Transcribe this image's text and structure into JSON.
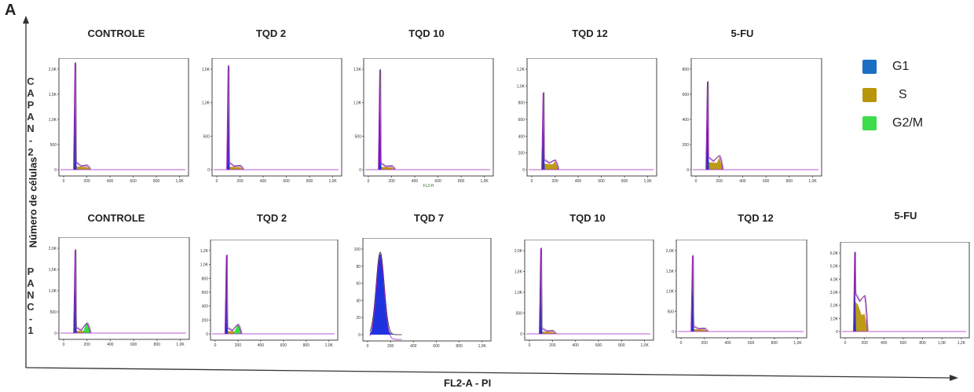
{
  "panel_letter": "A",
  "y_axis_label": "Número de células",
  "x_axis_label": "FL2-A - PI",
  "row_labels": [
    "CAPAN-2",
    "PANC-1"
  ],
  "legend": [
    {
      "label": "G1",
      "color": "#1a6fc4"
    },
    {
      "label": "S",
      "color": "#b8960b"
    },
    {
      "label": "G2/M",
      "color": "#3ddc4a"
    }
  ],
  "colors": {
    "histogram": "#a020c8",
    "g1_fill": "#1f32e0",
    "s_fill": "#b8960b",
    "g2m_fill": "#3ddc4a"
  },
  "chart_data": [
    {
      "type": "area",
      "row": "CAPAN-2",
      "title": "CONTROLE",
      "ymax": 2000,
      "yticks": [
        "0",
        "500",
        "1,0K",
        "1,5K",
        "2,0K"
      ],
      "xticks": [
        "0",
        "200",
        "400",
        "600",
        "800",
        "1,0K"
      ],
      "xlabel": "",
      "g1_peak": {
        "x": 100,
        "y": 2000
      },
      "s_level": 60,
      "g2m": {
        "x": 200,
        "y": 40
      },
      "g2m_visible": false
    },
    {
      "type": "area",
      "row": "CAPAN-2",
      "title": "TQD 2",
      "ymax": 1800,
      "yticks": [
        "0",
        "500",
        "1,0K",
        "1,5K"
      ],
      "xticks": [
        "0",
        "200",
        "400",
        "600",
        "800",
        "1,0K"
      ],
      "xlabel": "",
      "g1_peak": {
        "x": 100,
        "y": 1750
      },
      "s_level": 50,
      "g2m": {
        "x": 200,
        "y": 40
      },
      "g2m_visible": false
    },
    {
      "type": "area",
      "row": "CAPAN-2",
      "title": "TQD 10",
      "ymax": 1550,
      "yticks": [
        "0",
        "500",
        "1,0K",
        "1,5K"
      ],
      "xticks": [
        "0",
        "200",
        "400",
        "600",
        "800",
        "1,0K"
      ],
      "xlabel": "FL2-H",
      "g1_peak": {
        "x": 100,
        "y": 1450
      },
      "s_level": 40,
      "g2m": {
        "x": 200,
        "y": 40
      },
      "g2m_visible": false
    },
    {
      "type": "area",
      "row": "CAPAN-2",
      "title": "TQD 12",
      "ymax": 1250,
      "yticks": [
        "0",
        "200",
        "400",
        "600",
        "800",
        "1,0K",
        "1,2K"
      ],
      "xticks": [
        "0",
        "200",
        "400",
        "600",
        "800",
        "1,0K"
      ],
      "xlabel": "",
      "g1_peak": {
        "x": 100,
        "y": 900
      },
      "s_level": 70,
      "g2m": {
        "x": 200,
        "y": 110
      },
      "g2m_visible": false
    },
    {
      "type": "area",
      "row": "CAPAN-2",
      "title": "5-FU",
      "ymax": 850,
      "yticks": [
        "0",
        "200",
        "400",
        "600",
        "800"
      ],
      "xticks": [
        "0",
        "200",
        "400",
        "600",
        "800",
        "1,0K"
      ],
      "xlabel": "",
      "g1_peak": {
        "x": 100,
        "y": 700
      },
      "s_level": 60,
      "g2m": {
        "x": 200,
        "y": 110
      },
      "g2m_visible": false
    },
    {
      "type": "area",
      "row": "PANC-1",
      "title": "CONTROLE",
      "ymax": 2300,
      "yticks": [
        "0",
        "500",
        "1,0K",
        "1,5K",
        "2,0K"
      ],
      "xticks": [
        "0",
        "200",
        "400",
        "600",
        "800",
        "1,0K"
      ],
      "xlabel": "",
      "g1_peak": {
        "x": 100,
        "y": 2100
      },
      "s_level": 60,
      "g2m": {
        "x": 200,
        "y": 250
      },
      "g2m_visible": true
    },
    {
      "type": "area",
      "row": "PANC-1",
      "title": "TQD 2",
      "ymax": 1250,
      "yticks": [
        "0",
        "200",
        "400",
        "600",
        "800",
        "1,0K",
        "1,2K"
      ],
      "xticks": [
        "0",
        "200",
        "400",
        "600",
        "800",
        "1,0K"
      ],
      "xlabel": "",
      "g1_peak": {
        "x": 100,
        "y": 1100
      },
      "s_level": 40,
      "g2m": {
        "x": 200,
        "y": 130
      },
      "g2m_visible": true
    },
    {
      "type": "area",
      "row": "PANC-1",
      "title": "TQD 7",
      "ymax": 100,
      "yticks": [
        "0",
        "20",
        "40",
        "60",
        "80",
        "100"
      ],
      "xticks": [
        "0",
        "200",
        "400",
        "600",
        "800",
        "1,0K"
      ],
      "xlabel": "",
      "g1_peak": {
        "x": 100,
        "y": 88
      },
      "s_level": 0,
      "g2m": {
        "x": 200,
        "y": 0
      },
      "g2m_visible": false,
      "broad": true
    },
    {
      "type": "area",
      "row": "PANC-1",
      "title": "TQD 10",
      "ymax": 2300,
      "yticks": [
        "0",
        "500",
        "1,0K",
        "1,5K",
        "2,0K"
      ],
      "xticks": [
        "0",
        "200",
        "400",
        "600",
        "800",
        "1,0K"
      ],
      "xlabel": "",
      "g1_peak": {
        "x": 100,
        "y": 2200
      },
      "s_level": 60,
      "g2m": {
        "x": 200,
        "y": 50
      },
      "g2m_visible": false
    },
    {
      "type": "area",
      "row": "PANC-1",
      "title": "TQD 12",
      "ymax": 2300,
      "yticks": [
        "0",
        "500",
        "1,0K",
        "1,5K",
        "2,0K"
      ],
      "xticks": [
        "0",
        "200",
        "400",
        "600",
        "800",
        "1,0K"
      ],
      "xlabel": "",
      "g1_peak": {
        "x": 100,
        "y": 2000
      },
      "s_level": 60,
      "g2m": {
        "x": 200,
        "y": 50
      },
      "g2m_visible": false
    },
    {
      "type": "area",
      "row": "PANC-1",
      "title": "5-FU",
      "ymax": 6200,
      "yticks": [
        "0",
        "1,0K",
        "2,0K",
        "3,0K",
        "4,0K",
        "5,0K",
        "6,0K"
      ],
      "xticks": [
        "0",
        "200",
        "400",
        "600",
        "800",
        "1,0K",
        "1,2K"
      ],
      "xlabel": "",
      "g1_peak": {
        "x": 100,
        "y": 5800
      },
      "s_level": 2000,
      "g2m": {
        "x": 200,
        "y": 1300
      },
      "g2m_visible": false,
      "wide_s": true
    }
  ]
}
